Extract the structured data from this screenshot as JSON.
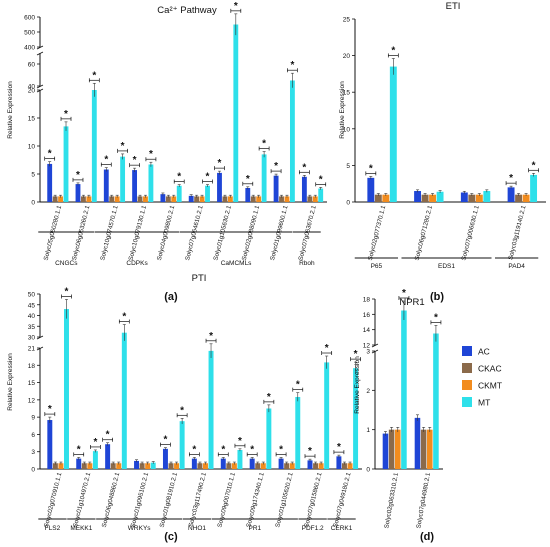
{
  "chart_data": [
    {
      "id": "a",
      "type": "bar",
      "title": "Ca²⁺ Pathway",
      "panel_label": "(a)",
      "ylabel": "Relative Expression",
      "categories": [
        "Solyc05g050280.1.1",
        "Solyc06g053260.2.1",
        "Solyc10g074570.1.1",
        "Solyc10g079130.1.1",
        "Solyc04g009800.2.1",
        "Solyc07g064610.2.1",
        "Solyc01g105630.2.1",
        "Solyc02g088090.1.1",
        "Solyc01g099600.1.1",
        "Solyc07g063670.2.1"
      ],
      "series": [
        {
          "name": "AC",
          "color": "#1f45d6",
          "values": [
            6.8,
            3.2,
            5.8,
            5.7,
            1.4,
            1.1,
            5.2,
            2.5,
            4.7,
            4.5
          ]
        },
        {
          "name": "CKAC",
          "color": "#8b6a4a",
          "values": [
            1.0,
            1.0,
            1.0,
            1.0,
            1.0,
            1.0,
            1.0,
            1.0,
            1.0,
            1.0
          ]
        },
        {
          "name": "CKMT",
          "color": "#f28c1e",
          "values": [
            1.0,
            1.0,
            1.0,
            1.0,
            1.0,
            1.0,
            1.0,
            1.0,
            1.0,
            1.0
          ]
        },
        {
          "name": "MT",
          "color": "#2ee0ea",
          "values": [
            13.5,
            20,
            8.1,
            6.7,
            2.9,
            2.9,
            550,
            8.5,
            45,
            2.4
          ]
        }
      ],
      "significant": [
        [
          true,
          true,
          true,
          true,
          false,
          false,
          true,
          true,
          true,
          true
        ],
        [
          false,
          false,
          false,
          false,
          false,
          false,
          false,
          false,
          false,
          false
        ],
        [
          false,
          false,
          false,
          false,
          false,
          false,
          false,
          false,
          false,
          false
        ],
        [
          true,
          true,
          true,
          true,
          true,
          true,
          true,
          true,
          true,
          true
        ]
      ],
      "y_ticks": [
        "0",
        "5",
        "10",
        "15",
        "20",
        "40",
        "60",
        "400",
        "500",
        "600"
      ],
      "groups": [
        {
          "label": "CNGCs",
          "from": 0,
          "to": 1
        },
        {
          "label": "CDPKs",
          "from": 2,
          "to": 4
        },
        {
          "label": "CaMCMLs",
          "from": 5,
          "to": 8
        },
        {
          "label": "Rboh",
          "from": 9,
          "to": 9
        }
      ]
    },
    {
      "id": "b",
      "type": "bar",
      "title": "ETI",
      "panel_label": "(b)",
      "ylabel": "Relative Expression",
      "categories": [
        "Solyc02g077370.1.1",
        "Solyc06g071280.2.1",
        "Solyc07g006630.1.1",
        "Solyc03g119140.2.1"
      ],
      "series": [
        {
          "name": "AC",
          "color": "#1f45d6",
          "values": [
            3.3,
            1.5,
            1.3,
            2.0
          ]
        },
        {
          "name": "CKAC",
          "color": "#8b6a4a",
          "values": [
            1.0,
            1.0,
            1.0,
            1.0
          ]
        },
        {
          "name": "CKMT",
          "color": "#f28c1e",
          "values": [
            1.0,
            1.0,
            1.0,
            1.0
          ]
        },
        {
          "name": "MT",
          "color": "#2ee0ea",
          "values": [
            18.5,
            1.4,
            1.5,
            3.7
          ]
        }
      ],
      "significant": [
        [
          true,
          false,
          false,
          true
        ],
        [
          false,
          false,
          false,
          false
        ],
        [
          false,
          false,
          false,
          false
        ],
        [
          true,
          false,
          false,
          true
        ]
      ],
      "y_ticks": [
        "0",
        "5",
        "10",
        "15",
        "20",
        "25"
      ],
      "groups": [
        {
          "label": "P65",
          "from": 0,
          "to": 0
        },
        {
          "label": "EDS1",
          "from": 1,
          "to": 2
        },
        {
          "label": "PAD4",
          "from": 3,
          "to": 3
        }
      ]
    },
    {
      "id": "c",
      "type": "bar",
      "title": "PTI",
      "panel_label": "(c)",
      "ylabel": "Relative Expression",
      "categories": [
        "Solyc02g070910.1.1",
        "Solyc01g104970.2.1",
        "Solyc06g048860.2.1",
        "Solyc01g095100.2.1",
        "Solyc01g081910.2.1",
        "Solyc03g117490.2.1",
        "Solyc09g007010.1.1",
        "Solyc09g174340.1.1",
        "Solyc01g105620.2.1",
        "Solyc07g015860.2.1",
        "Solyc07g049180.2.1"
      ],
      "series": [
        {
          "name": "AC",
          "color": "#1f45d6",
          "values": [
            8.5,
            1.8,
            4.3,
            1.4,
            3.5,
            1.8,
            1.8,
            1.8,
            1.8,
            1.5,
            2.2
          ]
        },
        {
          "name": "CKAC",
          "color": "#8b6a4a",
          "values": [
            1.0,
            1.0,
            1.0,
            1.0,
            1.0,
            1.0,
            1.0,
            1.0,
            1.0,
            1.0,
            1.0
          ]
        },
        {
          "name": "CKMT",
          "color": "#f28c1e",
          "values": [
            1.0,
            1.0,
            1.0,
            1.0,
            1.0,
            1.0,
            1.0,
            1.0,
            1.0,
            1.0,
            1.0
          ]
        },
        {
          "name": "MT",
          "color": "#2ee0ea",
          "values": [
            43,
            3.1,
            32,
            1.1,
            8.3,
            20.5,
            3.3,
            10.5,
            12.5,
            18.5,
            17.5
          ]
        }
      ],
      "significant": [
        [
          true,
          true,
          true,
          false,
          true,
          true,
          true,
          true,
          true,
          true,
          true
        ],
        [
          false,
          false,
          false,
          false,
          false,
          false,
          false,
          false,
          false,
          false,
          false
        ],
        [
          false,
          false,
          false,
          false,
          false,
          false,
          false,
          false,
          false,
          false,
          false
        ],
        [
          true,
          true,
          true,
          false,
          true,
          true,
          true,
          true,
          true,
          true,
          true
        ]
      ],
      "y_ticks": [
        "0",
        "3",
        "6",
        "9",
        "12",
        "15",
        "18",
        "21",
        "30",
        "35",
        "40",
        "45",
        "50"
      ],
      "groups": [
        {
          "label": "FLS2",
          "from": 0,
          "to": 0
        },
        {
          "label": "MEKK1",
          "from": 1,
          "to": 1
        },
        {
          "label": "WRKYs",
          "from": 2,
          "to": 4
        },
        {
          "label": "NHO1",
          "from": 5,
          "to": 5
        },
        {
          "label": "PR1",
          "from": 6,
          "to": 8
        },
        {
          "label": "PDF1.2",
          "from": 9,
          "to": 9
        },
        {
          "label": "CERK1",
          "from": 10,
          "to": 10
        }
      ]
    },
    {
      "id": "d",
      "type": "bar",
      "title": "NPR1",
      "panel_label": "(d)",
      "ylabel": "Relative Expression",
      "categories": [
        "Solyc02g063310.2.1",
        "Solyc07g044980.2.1"
      ],
      "series": [
        {
          "name": "AC",
          "color": "#1f45d6",
          "values": [
            0.9,
            1.3
          ]
        },
        {
          "name": "CKAC",
          "color": "#8b6a4a",
          "values": [
            1.0,
            1.0
          ]
        },
        {
          "name": "CKMT",
          "color": "#f28c1e",
          "values": [
            1.0,
            1.0
          ]
        },
        {
          "name": "MT",
          "color": "#2ee0ea",
          "values": [
            16.5,
            13.5
          ]
        }
      ],
      "significant": [
        [
          false,
          false
        ],
        [
          false,
          false
        ],
        [
          false,
          false
        ],
        [
          true,
          true
        ]
      ],
      "y_ticks": [
        "0",
        "1",
        "2",
        "3",
        "12",
        "14",
        "16",
        "18"
      ],
      "groups": []
    }
  ],
  "legend": [
    {
      "label": "AC",
      "color": "#1f45d6"
    },
    {
      "label": "CKAC",
      "color": "#8b6a4a"
    },
    {
      "label": "CKMT",
      "color": "#f28c1e"
    },
    {
      "label": "MT",
      "color": "#2ee0ea"
    }
  ],
  "significance_mark": "*"
}
